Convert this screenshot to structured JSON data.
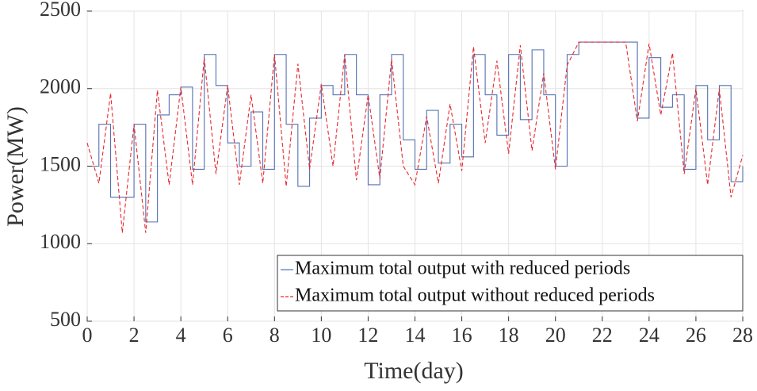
{
  "chart_data": {
    "type": "line",
    "xlabel": "Time(day)",
    "ylabel": "Power(MW)",
    "xlim": [
      0,
      28
    ],
    "xticks": [
      0,
      2,
      4,
      6,
      8,
      10,
      12,
      14,
      16,
      18,
      20,
      22,
      24,
      26,
      28
    ],
    "ylim": [
      500,
      2500
    ],
    "yticks": [
      500,
      1000,
      1500,
      2000,
      2500
    ],
    "grid": true,
    "legend": "lower right",
    "x": [
      0,
      0.5,
      1,
      1.5,
      2,
      2.5,
      3,
      3.5,
      4,
      4.5,
      5,
      5.5,
      6,
      6.5,
      7,
      7.5,
      8,
      8.5,
      9,
      9.5,
      10,
      10.5,
      11,
      11.5,
      12,
      12.5,
      13,
      13.5,
      14,
      14.5,
      15,
      15.5,
      16,
      16.5,
      17,
      17.5,
      18,
      18.5,
      19,
      19.5,
      20,
      20.5,
      21,
      21.5,
      22,
      22.5,
      23,
      23.5,
      24,
      24.5,
      25,
      25.5,
      26,
      26.5,
      27,
      27.5,
      28
    ],
    "series": [
      {
        "name": "Maximum total output with reduced periods",
        "color": "#5470b0",
        "style": "solid",
        "step": true,
        "values": [
          1500,
          1770,
          1300,
          1300,
          1770,
          1140,
          1830,
          1960,
          2010,
          1480,
          2220,
          2020,
          1650,
          1500,
          1850,
          1480,
          2220,
          1770,
          1370,
          1810,
          2020,
          1960,
          2220,
          1960,
          1380,
          1960,
          2220,
          1670,
          1480,
          1860,
          1520,
          1770,
          1560,
          2220,
          1960,
          1700,
          2220,
          1800,
          2250,
          1960,
          1500,
          2220,
          2300,
          2300,
          2300,
          2300,
          2300,
          1810,
          2200,
          1880,
          1960,
          1480,
          2020,
          1670,
          2020,
          1400,
          1500
        ]
      },
      {
        "name": "Maximum total output without reduced periods",
        "color": "#e8282d",
        "style": "dashed",
        "step": false,
        "values": [
          1650,
          1390,
          1970,
          1070,
          1770,
          1070,
          1990,
          1380,
          2010,
          1380,
          2200,
          1450,
          2020,
          1380,
          1960,
          1390,
          2220,
          1370,
          2160,
          1480,
          2030,
          1500,
          2220,
          1410,
          1960,
          1420,
          2190,
          1500,
          1380,
          1820,
          1390,
          1900,
          1470,
          2270,
          1650,
          2180,
          1580,
          2280,
          1600,
          2100,
          1480,
          2150,
          2300,
          2300,
          2300,
          2300,
          2300,
          1790,
          2290,
          1830,
          2230,
          1450,
          2000,
          1380,
          2000,
          1300,
          1570
        ]
      }
    ]
  }
}
